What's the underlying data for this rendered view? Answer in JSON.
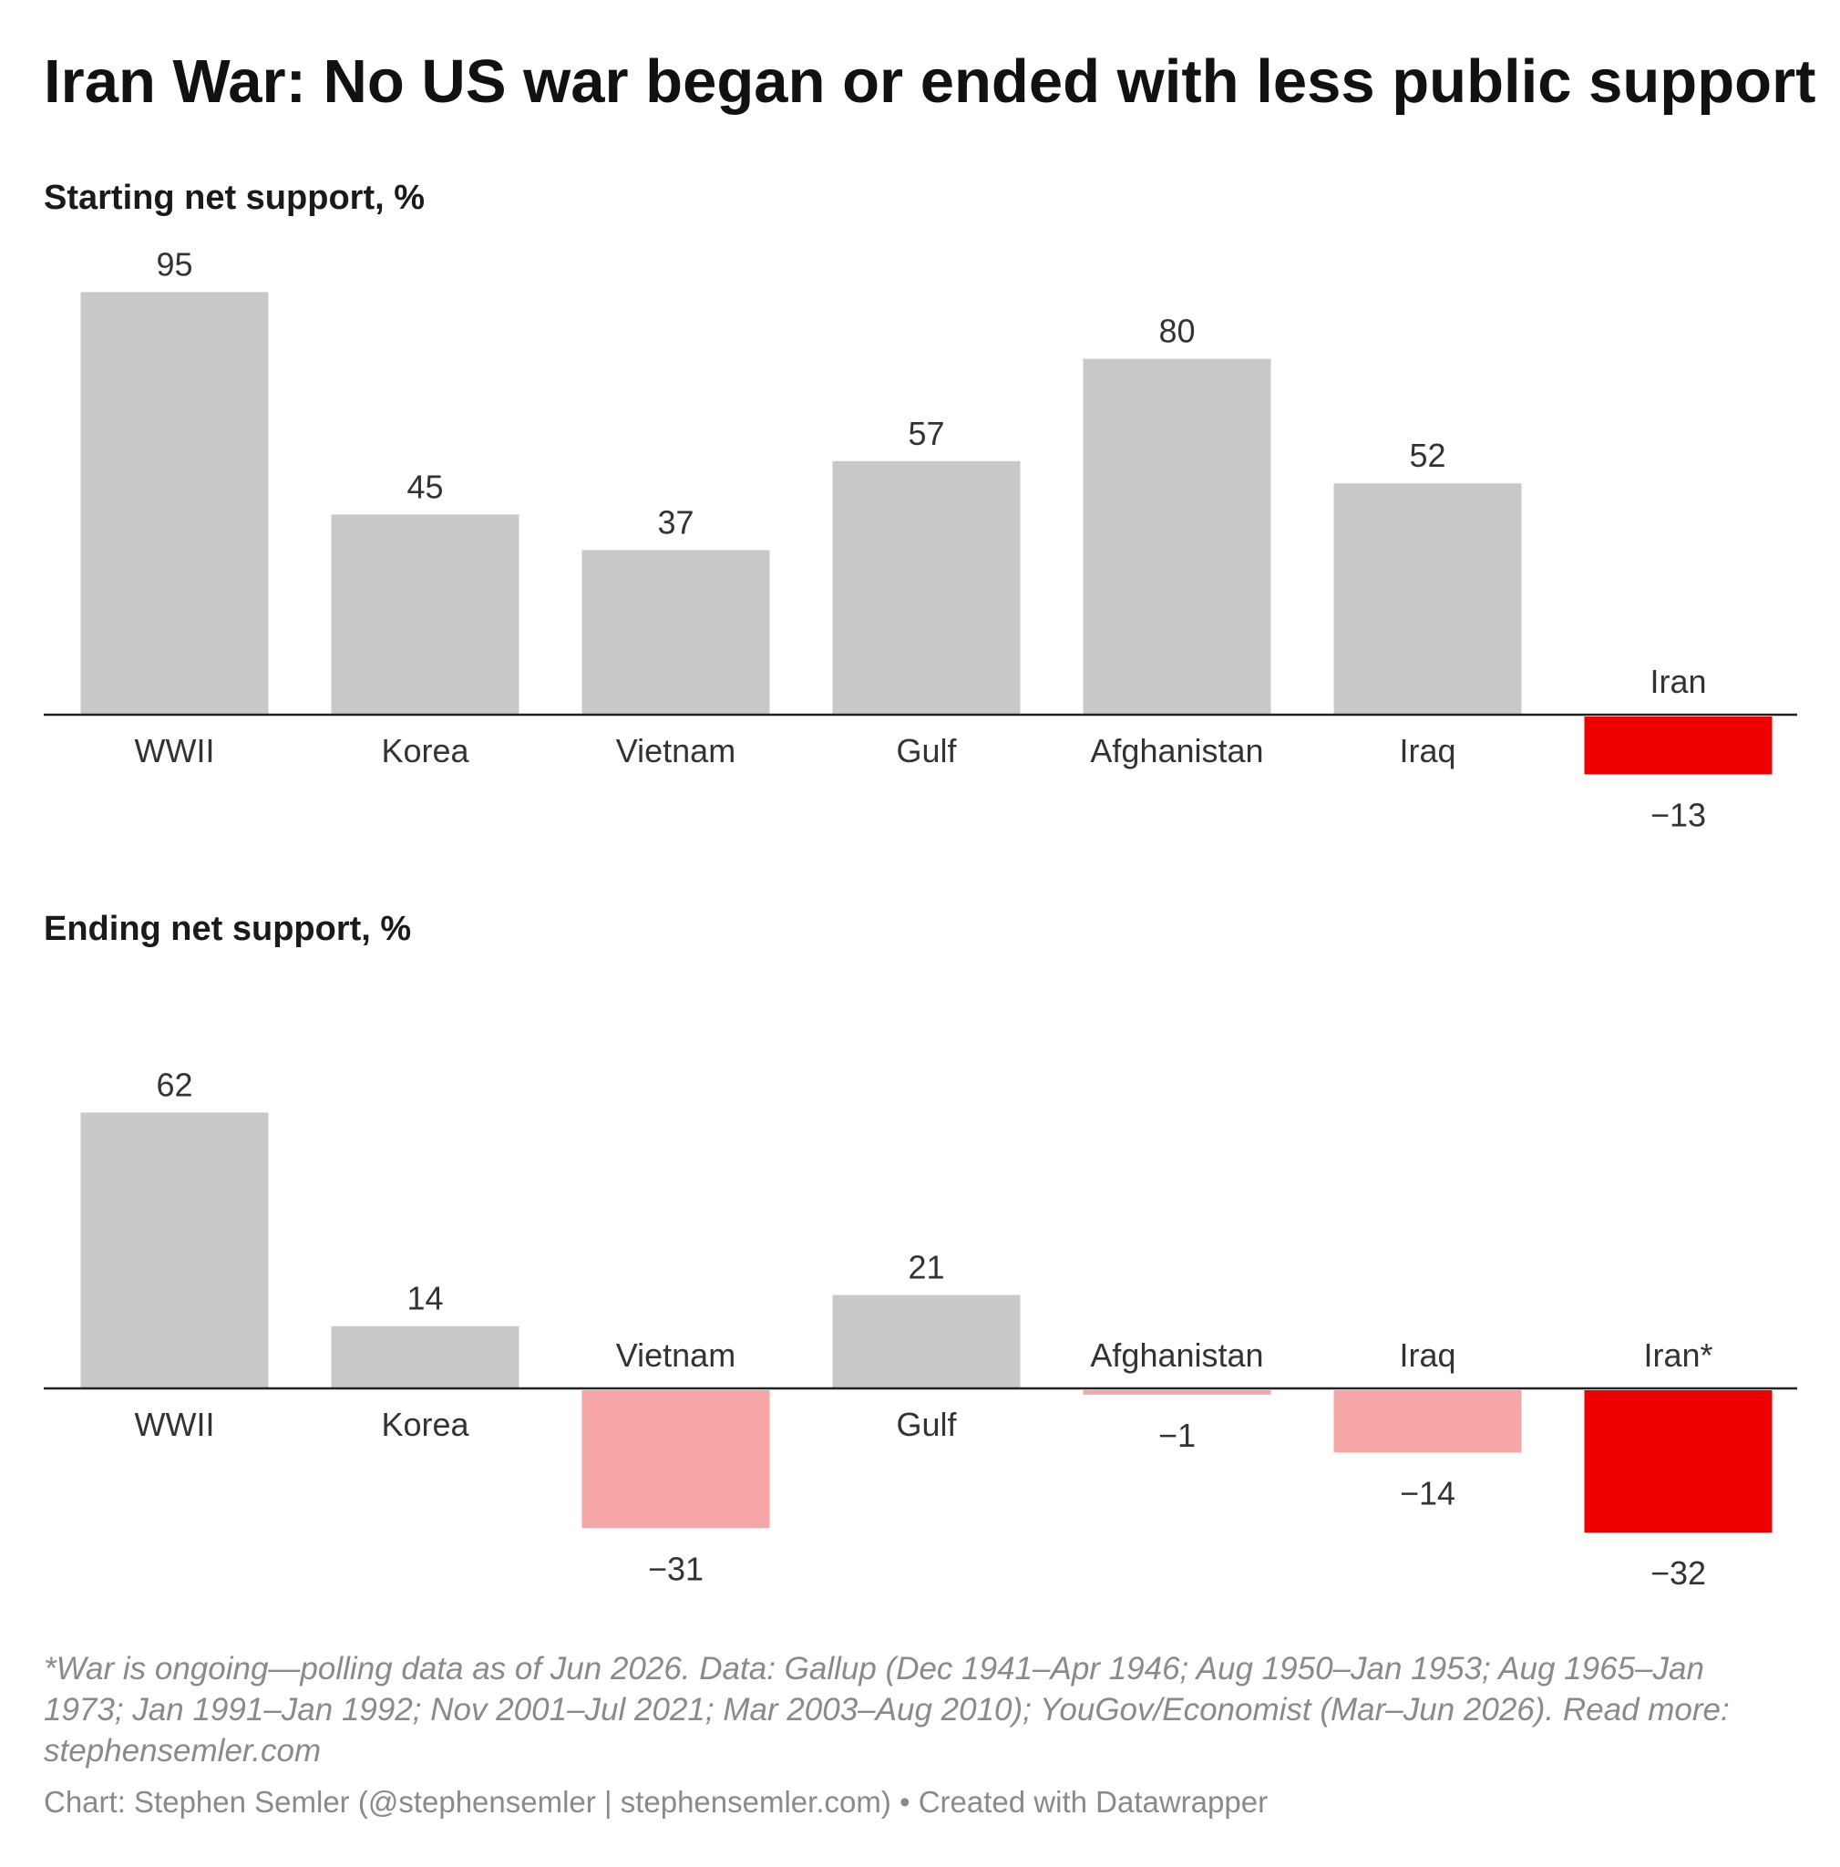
{
  "title": "Iran War: No US war began or ended with less public support",
  "footnote": "*War is ongoing—polling data as of Jun 2026. Data: Gallup (Dec 1941–Apr 1946; Aug 1950–Jan 1953; Aug 1965–Jan 1973; Jan 1991–Jan 1992; Nov 2001–Jul 2021; Mar 2003–Aug 2010); YouGov/Economist (Mar–Jun 2026). Read more: stephensemler.com",
  "credit": "Chart: Stephen Semler (@stephensemler | stephensemler.com) • Created with Datawrapper",
  "colors": {
    "positive": "#c8c8c8",
    "negative_light": "#f7a6a8",
    "highlight": "#ee0000",
    "baseline": "#222222"
  },
  "chart_data": [
    {
      "type": "bar",
      "title": "Starting net support, %",
      "categories": [
        "WWII",
        "Korea",
        "Vietnam",
        "Gulf",
        "Afghanistan",
        "Iraq",
        "Iran"
      ],
      "values": [
        95,
        45,
        37,
        57,
        80,
        52,
        -13
      ],
      "value_labels": [
        "95",
        "45",
        "37",
        "57",
        "80",
        "52",
        "−13"
      ],
      "highlight": [
        false,
        false,
        false,
        false,
        false,
        false,
        true
      ],
      "xlabel": "",
      "ylabel": "",
      "grid": false
    },
    {
      "type": "bar",
      "title": "Ending net support, %",
      "categories": [
        "WWII",
        "Korea",
        "Vietnam",
        "Gulf",
        "Afghanistan",
        "Iraq",
        "Iran*"
      ],
      "values": [
        62,
        14,
        -31,
        21,
        -1,
        -14,
        -32
      ],
      "value_labels": [
        "62",
        "14",
        "−31",
        "21",
        "−1",
        "−14",
        "−32"
      ],
      "highlight": [
        false,
        false,
        false,
        false,
        false,
        false,
        true
      ],
      "xlabel": "",
      "ylabel": "",
      "grid": false
    }
  ]
}
